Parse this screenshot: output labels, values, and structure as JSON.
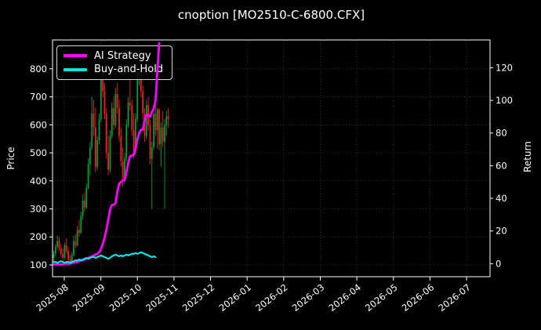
{
  "chart_data": {
    "type": "candlestick",
    "title": "cnoption [MO2510-C-6800.CFX]",
    "price_axis": {
      "label": "Price",
      "ticks": [
        100,
        200,
        300,
        400,
        500,
        600,
        700,
        800
      ],
      "range": [
        58,
        903
      ]
    },
    "return_axis": {
      "label": "Return",
      "ticks": [
        0,
        20,
        40,
        60,
        80,
        100,
        120
      ],
      "range": [
        -8,
        137
      ]
    },
    "x_axis": {
      "ticks": [
        "2025-08",
        "2025-09",
        "2025-10",
        "2025-11",
        "2025-12",
        "2026-01",
        "2026-02",
        "2026-03",
        "2026-04",
        "2026-05",
        "2026-06",
        "2026-07"
      ]
    },
    "grid": true,
    "legend_position": "upper-left",
    "colors": {
      "background": "#000000",
      "text": "#ffffff",
      "grid": "#3f3f3f",
      "spine": "#ffffff",
      "up": "#009e3c",
      "down": "#f01e1e",
      "ai": "#ff00ff",
      "bh": "#00e5e5"
    },
    "candles_ohlc": [
      [
        125,
        150,
        110,
        140
      ],
      [
        140,
        175,
        130,
        165
      ],
      [
        165,
        205,
        155,
        185
      ],
      [
        185,
        200,
        150,
        160
      ],
      [
        160,
        175,
        130,
        140
      ],
      [
        140,
        160,
        115,
        125
      ],
      [
        125,
        180,
        120,
        170
      ],
      [
        170,
        195,
        140,
        150
      ],
      [
        150,
        165,
        110,
        120
      ],
      [
        120,
        135,
        100,
        108
      ],
      [
        108,
        145,
        102,
        135
      ],
      [
        135,
        205,
        130,
        185
      ],
      [
        185,
        210,
        160,
        170
      ],
      [
        170,
        240,
        165,
        225
      ],
      [
        225,
        260,
        200,
        215
      ],
      [
        215,
        290,
        210,
        275
      ],
      [
        275,
        350,
        260,
        330
      ],
      [
        330,
        360,
        290,
        305
      ],
      [
        305,
        390,
        300,
        375
      ],
      [
        375,
        480,
        370,
        460
      ],
      [
        460,
        540,
        420,
        520
      ],
      [
        520,
        700,
        510,
        640
      ],
      [
        640,
        690,
        560,
        590
      ],
      [
        590,
        660,
        430,
        450
      ],
      [
        450,
        560,
        440,
        545
      ],
      [
        545,
        640,
        530,
        620
      ],
      [
        620,
        780,
        610,
        760
      ],
      [
        760,
        800,
        700,
        720
      ],
      [
        720,
        750,
        620,
        640
      ],
      [
        640,
        660,
        480,
        500
      ],
      [
        500,
        560,
        420,
        440
      ],
      [
        440,
        580,
        430,
        560
      ],
      [
        560,
        680,
        550,
        660
      ],
      [
        660,
        700,
        580,
        600
      ],
      [
        600,
        730,
        590,
        710
      ],
      [
        710,
        750,
        640,
        660
      ],
      [
        660,
        690,
        540,
        560
      ],
      [
        560,
        590,
        450,
        470
      ],
      [
        470,
        520,
        380,
        400
      ],
      [
        400,
        500,
        390,
        480
      ],
      [
        480,
        620,
        470,
        600
      ],
      [
        600,
        700,
        590,
        680
      ],
      [
        680,
        760,
        650,
        670
      ],
      [
        670,
        690,
        560,
        580
      ],
      [
        580,
        640,
        480,
        500
      ],
      [
        500,
        640,
        490,
        620
      ],
      [
        620,
        800,
        610,
        780
      ],
      [
        780,
        820,
        740,
        800
      ],
      [
        800,
        810,
        700,
        720
      ],
      [
        720,
        740,
        620,
        640
      ],
      [
        640,
        660,
        540,
        560
      ],
      [
        560,
        690,
        550,
        670
      ],
      [
        670,
        700,
        580,
        600
      ],
      [
        600,
        620,
        460,
        480
      ],
      [
        480,
        540,
        300,
        520
      ],
      [
        520,
        660,
        510,
        640
      ],
      [
        640,
        670,
        560,
        580
      ],
      [
        580,
        660,
        515,
        655
      ],
      [
        655,
        660,
        510,
        530
      ],
      [
        530,
        610,
        450,
        590
      ],
      [
        590,
        650,
        520,
        540
      ],
      [
        540,
        620,
        300,
        600
      ],
      [
        600,
        650,
        560,
        630
      ],
      [
        630,
        660,
        590,
        620
      ]
    ],
    "series": [
      {
        "name": "AI Strategy",
        "axis": "return",
        "color_key": "ai",
        "values": [
          -0.5,
          -0.5,
          -0.5,
          -0.5,
          -0.5,
          -0.5,
          0,
          0,
          0,
          0,
          0.5,
          0.5,
          1,
          1,
          1.5,
          2,
          2,
          2.5,
          3,
          3.5,
          4,
          4.5,
          5,
          5.5,
          6,
          7,
          9,
          12,
          16,
          21,
          27,
          33,
          36,
          36,
          37,
          44,
          49,
          50,
          51,
          51,
          56,
          62,
          66,
          66,
          67,
          70,
          76,
          80,
          82,
          82,
          88,
          91,
          91,
          90,
          93,
          95,
          100,
          118,
          135
        ]
      },
      {
        "name": "Buy-and-Hold",
        "axis": "return",
        "color_key": "bh",
        "values": [
          1,
          1,
          0.5,
          1,
          1.5,
          1,
          0.5,
          1,
          1,
          0.5,
          1,
          1.5,
          2,
          2,
          2.5,
          2,
          2.5,
          3,
          3.5,
          3,
          3.5,
          4,
          4,
          3.5,
          4,
          4.5,
          5,
          4.5,
          4,
          3.5,
          3,
          3.5,
          4.5,
          5,
          5.5,
          5,
          4.5,
          5,
          4.5,
          5,
          5.5,
          5,
          5.5,
          6,
          6,
          6.5,
          6,
          6.5,
          7,
          6.5,
          6,
          5.5,
          5,
          4.5,
          4,
          4.5,
          4
        ]
      }
    ]
  }
}
